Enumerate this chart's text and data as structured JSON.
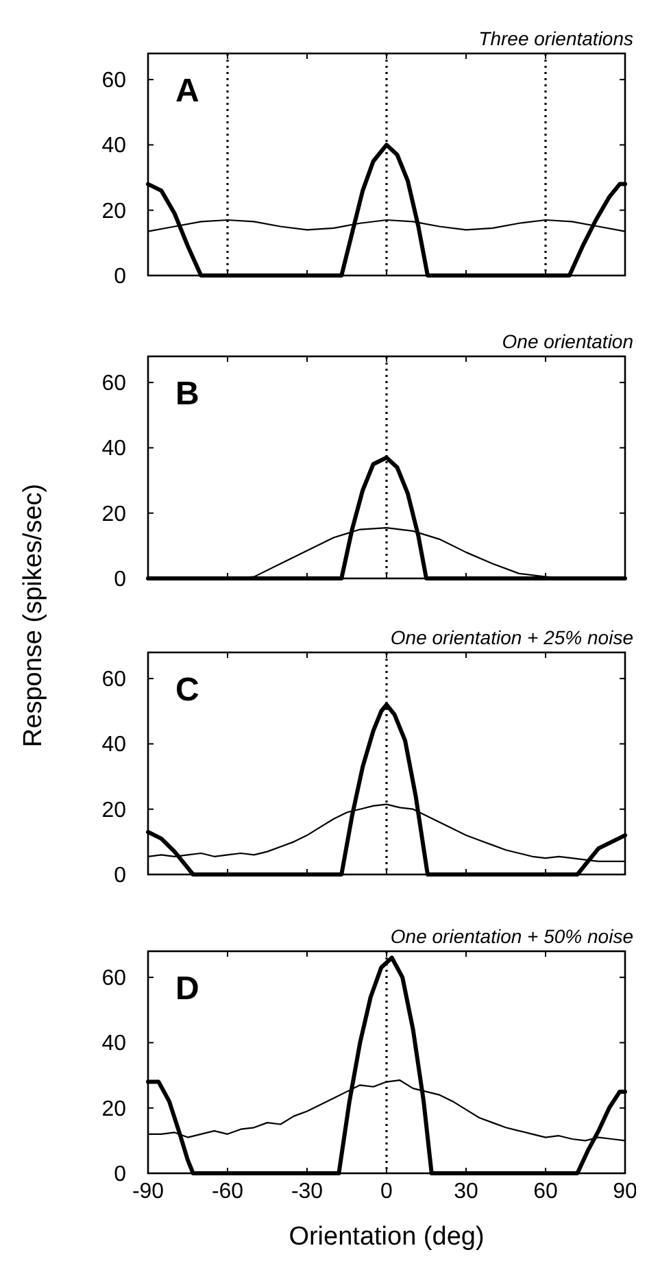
{
  "chart_data": [
    {
      "type": "line",
      "title": "Three orientations",
      "annotations": [
        "A"
      ],
      "xlim": [
        -90,
        90
      ],
      "xticks": [
        -90,
        -60,
        -30,
        0,
        30,
        60,
        90
      ],
      "ylim": [
        0,
        68
      ],
      "yticks": [
        0,
        20,
        40,
        60
      ],
      "tick_labels": "y",
      "ref_lines": [
        {
          "axis": "x",
          "value": -60,
          "line_style": "dotted",
          "color": "#000000"
        },
        {
          "axis": "x",
          "value": 0,
          "line_style": "dotted",
          "color": "#000000"
        },
        {
          "axis": "x",
          "value": 60,
          "line_style": "dotted",
          "color": "#000000"
        }
      ],
      "series": [
        {
          "color": "#000000",
          "x": [
            -90,
            -85,
            -80,
            -75,
            -70,
            -17,
            -13,
            -9,
            -5,
            0,
            4,
            8,
            12,
            15.5,
            69,
            74,
            79,
            84,
            88,
            90
          ],
          "values": [
            28,
            26,
            19,
            9,
            0,
            0,
            13,
            26,
            35,
            40,
            37,
            29,
            15,
            0,
            0,
            9,
            17,
            24,
            28,
            28
          ]
        },
        {
          "color": "#000000",
          "x": [
            -90,
            -80,
            -70,
            -60,
            -50,
            -40,
            -30,
            -20,
            -10,
            0,
            10,
            20,
            30,
            40,
            50,
            60,
            70,
            80,
            90
          ],
          "values": [
            13.5,
            15,
            16.5,
            17,
            16.5,
            15,
            14,
            14.5,
            16,
            17,
            16.5,
            15,
            14,
            14.5,
            16,
            17,
            16.5,
            15,
            13.5
          ]
        }
      ]
    },
    {
      "type": "line",
      "title": "One orientation",
      "annotations": [
        "B"
      ],
      "ylabel": "Response (spikes/sec)",
      "xlim": [
        -90,
        90
      ],
      "xticks": [
        -90,
        -60,
        -30,
        0,
        30,
        60,
        90
      ],
      "ylim": [
        0,
        68
      ],
      "yticks": [
        0,
        20,
        40,
        60
      ],
      "tick_labels": "y",
      "ref_lines": [
        {
          "axis": "x",
          "value": 0,
          "line_style": "dotted",
          "color": "#000000"
        }
      ],
      "series": [
        {
          "color": "#000000",
          "x": [
            -90,
            -17,
            -13,
            -9,
            -5,
            0,
            4,
            8,
            12,
            15,
            90
          ],
          "values": [
            0,
            0,
            15,
            27,
            35,
            37,
            34,
            26,
            13,
            0,
            0
          ]
        },
        {
          "color": "#000000",
          "x": [
            -90,
            -60,
            -50,
            -40,
            -30,
            -20,
            -10,
            0,
            10,
            20,
            30,
            40,
            50,
            60,
            70,
            90
          ],
          "values": [
            0,
            0,
            0.5,
            4.5,
            8.5,
            12.5,
            15,
            15.5,
            14.5,
            12,
            8,
            4.5,
            1.5,
            0.5,
            0,
            0
          ]
        }
      ]
    },
    {
      "type": "line",
      "title": "One orientation + 25% noise",
      "annotations": [
        "C"
      ],
      "xlim": [
        -90,
        90
      ],
      "xticks": [
        -90,
        -60,
        -30,
        0,
        30,
        60,
        90
      ],
      "ylim": [
        0,
        68
      ],
      "yticks": [
        0,
        20,
        40,
        60
      ],
      "tick_labels": "y",
      "ref_lines": [
        {
          "axis": "x",
          "value": 0,
          "line_style": "dotted",
          "color": "#000000"
        }
      ],
      "series": [
        {
          "color": "#000000",
          "x": [
            -90,
            -85,
            -80,
            -76,
            -73,
            -17,
            -13,
            -9,
            -5,
            -2,
            0,
            3,
            7,
            11,
            15.5,
            72,
            76,
            80,
            85,
            90
          ],
          "values": [
            13,
            11,
            7,
            3,
            0,
            0,
            18,
            33,
            44,
            50,
            52,
            49,
            41,
            24,
            0,
            0,
            4,
            8,
            10,
            12
          ]
        },
        {
          "color": "#000000",
          "x": [
            -90,
            -85,
            -80,
            -75,
            -70,
            -65,
            -60,
            -55,
            -50,
            -45,
            -40,
            -35,
            -30,
            -25,
            -20,
            -15,
            -10,
            -5,
            0,
            5,
            10,
            15,
            20,
            25,
            30,
            35,
            40,
            45,
            50,
            55,
            60,
            65,
            70,
            75,
            80,
            85,
            90
          ],
          "values": [
            5.5,
            6,
            5.5,
            6,
            6.5,
            5.5,
            6,
            6.5,
            6,
            7,
            8.5,
            10,
            12,
            14.5,
            17,
            19,
            20,
            21,
            21.5,
            20.5,
            20,
            18,
            16,
            14,
            12,
            10.5,
            9,
            7.5,
            6.5,
            5.5,
            5,
            5.5,
            5,
            4.5,
            4,
            4,
            4
          ]
        }
      ]
    },
    {
      "type": "line",
      "title": "One orientation + 50% noise",
      "annotations": [
        "D"
      ],
      "xlabel": "Orientation (deg)",
      "xlim": [
        -90,
        90
      ],
      "xticks": [
        -90,
        -60,
        -30,
        0,
        30,
        60,
        90
      ],
      "ylim": [
        0,
        68
      ],
      "yticks": [
        0,
        20,
        40,
        60
      ],
      "ref_lines": [
        {
          "axis": "x",
          "value": 0,
          "line_style": "dotted",
          "color": "#000000"
        }
      ],
      "series": [
        {
          "color": "#000000",
          "x": [
            -90,
            -86,
            -82,
            -78,
            -75,
            -73,
            -18,
            -14,
            -10,
            -6,
            -2,
            2,
            6,
            10,
            14,
            17,
            72,
            76,
            80,
            84,
            88,
            90
          ],
          "values": [
            28,
            28,
            22,
            12,
            4,
            0,
            0,
            22,
            40,
            54,
            63,
            66,
            60,
            44,
            22,
            0,
            0,
            7,
            13,
            20,
            25,
            25
          ]
        },
        {
          "color": "#000000",
          "x": [
            -90,
            -85,
            -80,
            -75,
            -70,
            -65,
            -60,
            -55,
            -50,
            -45,
            -40,
            -35,
            -30,
            -25,
            -20,
            -15,
            -10,
            -5,
            0,
            5,
            10,
            15,
            20,
            25,
            30,
            35,
            40,
            45,
            50,
            55,
            60,
            65,
            70,
            75,
            80,
            85,
            90
          ],
          "values": [
            12,
            12,
            12.5,
            11,
            12,
            13,
            12,
            13.5,
            14,
            15.5,
            15,
            17.5,
            19,
            21,
            23,
            25,
            27,
            26.5,
            28,
            28.5,
            26,
            25,
            24,
            22,
            19.5,
            17,
            15.5,
            14,
            13,
            12,
            11,
            11.5,
            10.5,
            10,
            11,
            10.5,
            10
          ]
        }
      ]
    }
  ]
}
